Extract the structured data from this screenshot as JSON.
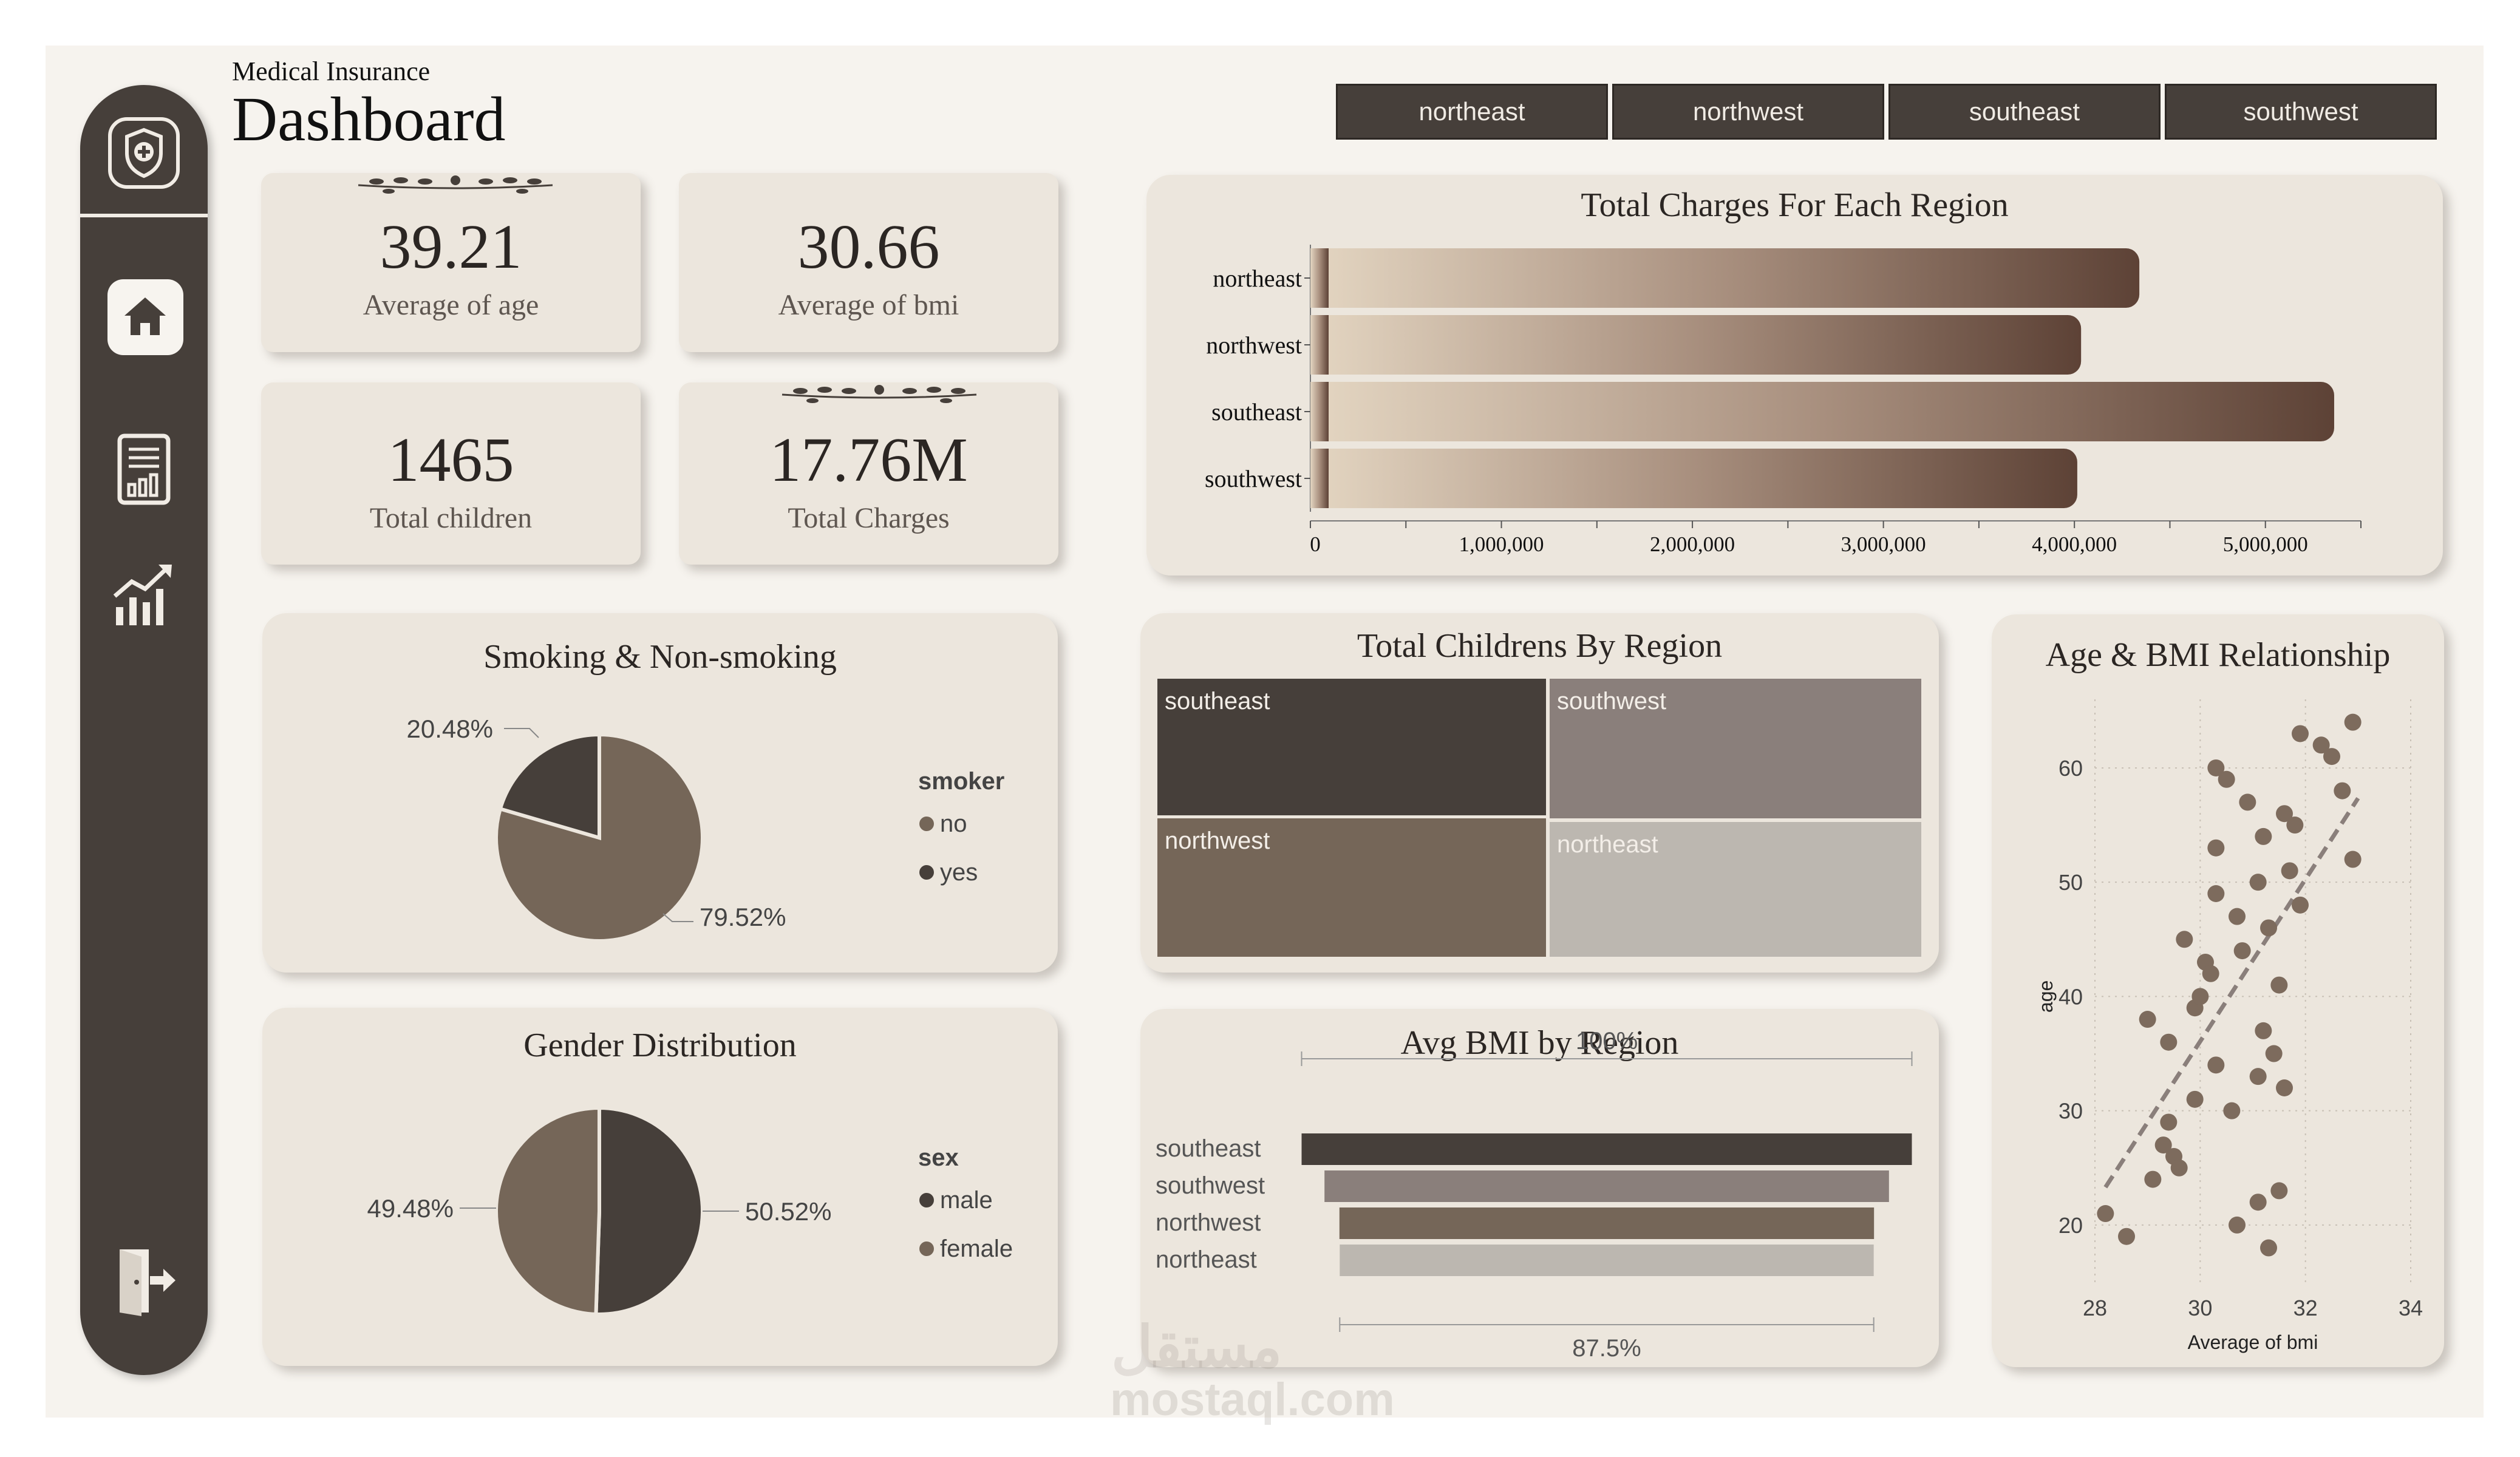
{
  "header": {
    "subtitle": "Medical Insurance",
    "title": "Dashboard"
  },
  "sidebar": {
    "items": [
      {
        "icon": "shield-plus-icon"
      },
      {
        "icon": "home-icon",
        "active": true
      },
      {
        "icon": "report-icon"
      },
      {
        "icon": "trend-chart-icon"
      },
      {
        "icon": "logout-icon"
      }
    ]
  },
  "filters": [
    "northeast",
    "northwest",
    "southeast",
    "southwest"
  ],
  "kpis": {
    "avg_age": {
      "value": "39.21",
      "label": "Average of age"
    },
    "avg_bmi": {
      "value": "30.66",
      "label": "Average of bmi"
    },
    "total_children": {
      "value": "1465",
      "label": "Total children"
    },
    "total_charges": {
      "value": "17.76M",
      "label": "Total Charges"
    }
  },
  "colors": {
    "dark": "#463f3a",
    "medium": "#756658",
    "gray": "#8a7f7b",
    "light": "#bcb7b0",
    "card": "#ece6dd"
  },
  "watermark": {
    "arabic": "مستقل",
    "latin": "mostaql.com"
  },
  "chart_data": [
    {
      "id": "charges_by_region",
      "type": "bar",
      "orientation": "horizontal",
      "title": "Total Charges For Each Region",
      "categories": [
        "northeast",
        "northwest",
        "southeast",
        "southwest"
      ],
      "values": [
        4340000,
        4035000,
        5360000,
        4015000
      ],
      "xlim": [
        0,
        5500000
      ],
      "ticks": [
        0,
        1000000,
        2000000,
        3000000,
        4000000,
        5000000
      ],
      "tick_labels": [
        "0",
        "1,000,000",
        "2,000,000",
        "3,000,000",
        "4,000,000",
        "5,000,000"
      ]
    },
    {
      "id": "smoking",
      "type": "pie",
      "title": "Smoking & Non-smoking",
      "legend_title": "smoker",
      "labels": [
        "no",
        "yes"
      ],
      "values": [
        79.52,
        20.48
      ],
      "value_labels": [
        "79.52%",
        "20.48%"
      ],
      "colors": [
        "#756658",
        "#463f3a"
      ]
    },
    {
      "id": "gender",
      "type": "pie",
      "title": "Gender Distribution",
      "legend_title": "sex",
      "labels": [
        "male",
        "female"
      ],
      "values": [
        50.52,
        49.48
      ],
      "value_labels": [
        "50.52%",
        "49.48%"
      ],
      "colors": [
        "#463f3a",
        "#756658"
      ]
    },
    {
      "id": "children_treemap",
      "type": "treemap",
      "title": "Total Childrens By Region",
      "categories": [
        "southeast",
        "southwest",
        "northwest",
        "northeast"
      ],
      "values": [
        382,
        371,
        373,
        339
      ],
      "colors": [
        "#463f3a",
        "#8a7f7b",
        "#756658",
        "#bcb7b0"
      ]
    },
    {
      "id": "avg_bmi_region",
      "type": "funnel",
      "title": "Avg BMI by Region",
      "categories": [
        "southeast",
        "southwest",
        "northwest",
        "northeast"
      ],
      "values": [
        100,
        92.5,
        87.6,
        87.5
      ],
      "top_label": "100%",
      "bottom_label": "87.5%",
      "colors": [
        "#463f3a",
        "#8a7f7b",
        "#756658",
        "#bcb7b0"
      ]
    },
    {
      "id": "age_bmi",
      "type": "scatter",
      "title": "Age & BMI Relationship",
      "xlabel": "Average of bmi",
      "ylabel": "age",
      "xlim": [
        28,
        34
      ],
      "ylim": [
        15,
        66
      ],
      "xticks": [
        28,
        30,
        32,
        34
      ],
      "yticks": [
        20,
        30,
        40,
        50,
        60
      ],
      "trendline": true,
      "points": [
        [
          28.2,
          21
        ],
        [
          28.6,
          19
        ],
        [
          29.0,
          38
        ],
        [
          29.4,
          36
        ],
        [
          29.1,
          24
        ],
        [
          29.4,
          29
        ],
        [
          29.3,
          27
        ],
        [
          29.5,
          26
        ],
        [
          29.6,
          25
        ],
        [
          29.7,
          45
        ],
        [
          29.9,
          31
        ],
        [
          29.9,
          39
        ],
        [
          30.0,
          40
        ],
        [
          30.1,
          43
        ],
        [
          30.2,
          42
        ],
        [
          30.3,
          34
        ],
        [
          30.3,
          53
        ],
        [
          30.3,
          49
        ],
        [
          30.3,
          60
        ],
        [
          30.5,
          59
        ],
        [
          30.6,
          30
        ],
        [
          30.7,
          20
        ],
        [
          30.7,
          47
        ],
        [
          30.8,
          44
        ],
        [
          30.9,
          57
        ],
        [
          31.1,
          22
        ],
        [
          31.1,
          50
        ],
        [
          31.2,
          54
        ],
        [
          31.1,
          33
        ],
        [
          31.2,
          37
        ],
        [
          31.3,
          46
        ],
        [
          31.3,
          18
        ],
        [
          31.4,
          35
        ],
        [
          31.5,
          23
        ],
        [
          31.5,
          41
        ],
        [
          31.6,
          32
        ],
        [
          31.6,
          56
        ],
        [
          31.7,
          51
        ],
        [
          31.8,
          55
        ],
        [
          31.9,
          48
        ],
        [
          31.9,
          63
        ],
        [
          32.3,
          62
        ],
        [
          32.5,
          61
        ],
        [
          32.7,
          58
        ],
        [
          32.9,
          52
        ],
        [
          32.9,
          64
        ]
      ]
    }
  ]
}
